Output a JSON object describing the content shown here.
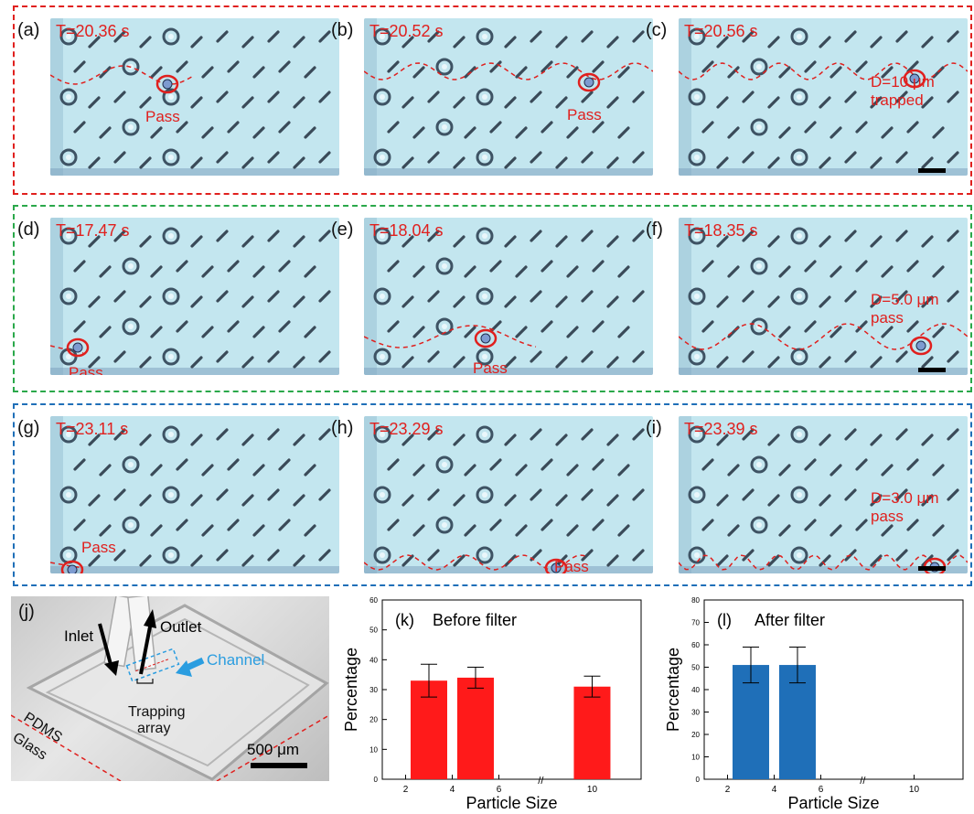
{
  "rows": [
    {
      "color": "#e0201e",
      "panels": [
        {
          "label": "(a)",
          "time": "T=20.36 s",
          "annotation": [
            "Pass"
          ]
        },
        {
          "label": "(b)",
          "time": "T=20.52 s",
          "annotation": [
            "Pass"
          ]
        },
        {
          "label": "(c)",
          "time": "T=20.56 s",
          "annotation": [
            "D=10 μm",
            "trapped"
          ]
        }
      ]
    },
    {
      "color": "#2aa84a",
      "panels": [
        {
          "label": "(d)",
          "time": "T=17.47 s",
          "annotation": [
            "Pass"
          ]
        },
        {
          "label": "(e)",
          "time": "T=18.04 s",
          "annotation": [
            "Pass"
          ]
        },
        {
          "label": "(f)",
          "time": "T=18.35 s",
          "annotation": [
            "D=5.0 μm",
            "pass"
          ]
        }
      ]
    },
    {
      "color": "#1f6fb8",
      "panels": [
        {
          "label": "(g)",
          "time": "T=23.11 s",
          "annotation": [
            "Pass"
          ]
        },
        {
          "label": "(h)",
          "time": "T=23.29 s",
          "annotation": [
            "Pass"
          ]
        },
        {
          "label": "(i)",
          "time": "T=23.39 s",
          "annotation": [
            "D=3.0 μm",
            "pass"
          ]
        }
      ]
    }
  ],
  "photo": {
    "label": "(j)",
    "inlet": "Inlet",
    "outlet": "Outlet",
    "channel": "Channel",
    "pdms": "PDMS",
    "glass": "Glass",
    "trapping1": "Trapping",
    "trapping2": "array",
    "scale": "500 μm"
  },
  "chart_data": [
    {
      "panel_label": "(k)",
      "type": "bar",
      "title": "Before filter",
      "xlabel": "Particle Size",
      "ylabel": "Percentage",
      "ylim": [
        0,
        60
      ],
      "yticks": [
        0,
        10,
        20,
        30,
        40,
        50,
        60
      ],
      "xticks": [
        "2",
        "4",
        "6",
        "10"
      ],
      "x": [
        3,
        5,
        10
      ],
      "values": [
        33,
        34,
        31
      ],
      "errors": [
        5.5,
        3.5,
        3.5
      ],
      "color": "#ff1a1a",
      "axis_break": "//"
    },
    {
      "panel_label": "(l)",
      "type": "bar",
      "title": "After filter",
      "xlabel": "Particle Size",
      "ylabel": "Percentage",
      "ylim": [
        0,
        80
      ],
      "yticks": [
        0,
        10,
        20,
        30,
        40,
        50,
        60,
        70,
        80
      ],
      "xticks": [
        "2",
        "4",
        "6",
        "10"
      ],
      "x": [
        3,
        5
      ],
      "values": [
        51,
        51
      ],
      "errors": [
        8,
        8
      ],
      "color": "#1f6fb8",
      "axis_break": "//"
    }
  ]
}
